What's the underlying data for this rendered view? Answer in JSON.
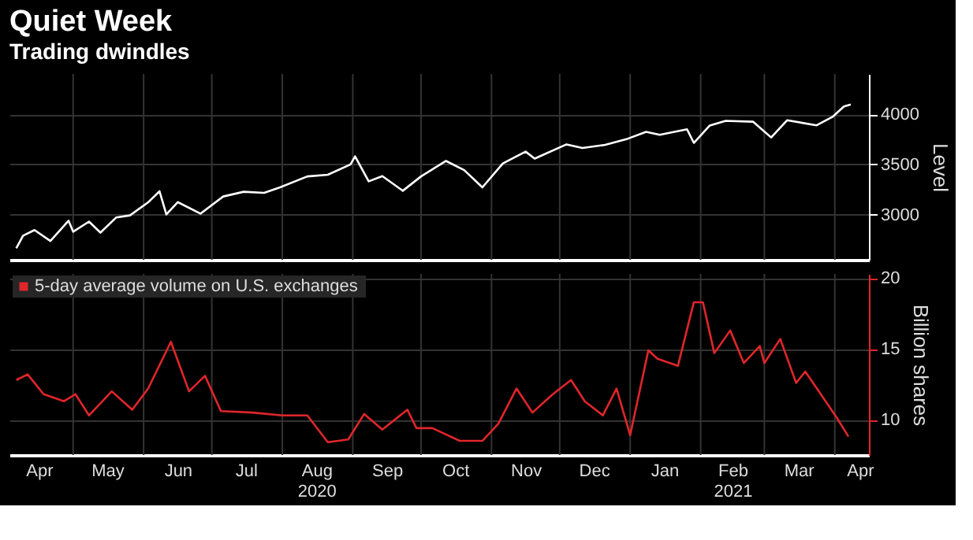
{
  "chart_data": [
    {
      "type": "line",
      "title": "Quiet Week",
      "subtitle": "Trading dwindles",
      "ylabel": "Level",
      "xlim": [
        "2020-04-03",
        "2021-04-16"
      ],
      "ylim": [
        2550,
        4400
      ],
      "yticks": [
        3000,
        3500,
        4000
      ],
      "grid": true,
      "tick_labels": "y",
      "legend": false,
      "x": [
        "2020-04-06",
        "2020-04-09",
        "2020-04-14",
        "2020-04-21",
        "2020-04-29",
        "2020-05-01",
        "2020-05-08",
        "2020-05-13",
        "2020-05-20",
        "2020-05-26",
        "2020-06-03",
        "2020-06-08",
        "2020-06-11",
        "2020-06-16",
        "2020-06-26",
        "2020-07-06",
        "2020-07-15",
        "2020-07-24",
        "2020-07-31",
        "2020-08-12",
        "2020-08-21",
        "2020-08-31",
        "2020-09-02",
        "2020-09-08",
        "2020-09-14",
        "2020-09-23",
        "2020-10-01",
        "2020-10-12",
        "2020-10-20",
        "2020-10-28",
        "2020-11-06",
        "2020-11-16",
        "2020-11-20",
        "2020-12-04",
        "2020-12-11",
        "2020-12-21",
        "2020-12-31",
        "2021-01-08",
        "2021-01-14",
        "2021-01-26",
        "2021-01-29",
        "2021-02-05",
        "2021-02-12",
        "2021-02-24",
        "2021-03-04",
        "2021-03-11",
        "2021-03-24",
        "2021-03-31",
        "2021-04-05",
        "2021-04-08"
      ],
      "xticks": [
        {
          "value": "2020-05-01",
          "label": null
        },
        {
          "value": "2020-06-01",
          "label": null
        },
        {
          "value": "2020-07-01",
          "label": null
        },
        {
          "value": "2020-08-01",
          "label": null
        },
        {
          "value": "2020-09-01",
          "label": null
        },
        {
          "value": "2020-10-01",
          "label": null
        },
        {
          "value": "2020-11-01",
          "label": null
        },
        {
          "value": "2020-12-01",
          "label": null
        },
        {
          "value": "2021-01-01",
          "label": null
        },
        {
          "value": "2021-02-01",
          "label": null
        },
        {
          "value": "2021-03-01",
          "label": null
        },
        {
          "value": "2021-04-01",
          "label": null
        }
      ],
      "series": [
        {
          "color": "#ffffff",
          "values": [
            2664,
            2790,
            2846,
            2737,
            2939,
            2830,
            2930,
            2820,
            2972,
            2992,
            3122,
            3232,
            3002,
            3124,
            3009,
            3180,
            3227,
            3216,
            3271,
            3380,
            3397,
            3500,
            3580,
            3331,
            3383,
            3237,
            3380,
            3534,
            3443,
            3271,
            3509,
            3627,
            3557,
            3699,
            3663,
            3694,
            3756,
            3824,
            3795,
            3849,
            3714,
            3887,
            3934,
            3925,
            3768,
            3939,
            3889,
            3973,
            4077,
            4097
          ]
        }
      ]
    },
    {
      "type": "line",
      "ylabel": "Billion shares",
      "xlim": [
        "2020-04-03",
        "2021-04-16"
      ],
      "ylim": [
        7.5,
        20.3
      ],
      "yticks": [
        10,
        15,
        20
      ],
      "grid": true,
      "legend": "top left",
      "x": [
        "2020-04-06",
        "2020-04-11",
        "2020-04-18",
        "2020-04-27",
        "2020-05-02",
        "2020-05-08",
        "2020-05-18",
        "2020-05-27",
        "2020-06-03",
        "2020-06-13",
        "2020-06-21",
        "2020-06-28",
        "2020-07-05",
        "2020-07-19",
        "2020-08-01",
        "2020-08-12",
        "2020-08-21",
        "2020-08-30",
        "2020-09-06",
        "2020-09-14",
        "2020-09-25",
        "2020-09-29",
        "2020-10-06",
        "2020-10-18",
        "2020-10-28",
        "2020-11-04",
        "2020-11-12",
        "2020-11-19",
        "2020-11-28",
        "2020-12-06",
        "2020-12-12",
        "2020-12-20",
        "2020-12-26",
        "2021-01-01",
        "2021-01-09",
        "2021-01-13",
        "2021-01-22",
        "2021-01-29",
        "2021-02-02",
        "2021-02-07",
        "2021-02-14",
        "2021-02-20",
        "2021-02-27",
        "2021-03-01",
        "2021-03-08",
        "2021-03-15",
        "2021-03-19",
        "2021-03-25",
        "2021-04-02",
        "2021-04-07"
      ],
      "xticks": [
        {
          "value": "2020-04-16",
          "label": "Apr"
        },
        {
          "value": "2020-05-01",
          "label": null
        },
        {
          "value": "2020-05-16",
          "label": "May"
        },
        {
          "value": "2020-06-01",
          "label": null
        },
        {
          "value": "2020-06-16",
          "label": "Jun"
        },
        {
          "value": "2020-07-01",
          "label": null
        },
        {
          "value": "2020-07-16",
          "label": "Jul"
        },
        {
          "value": "2020-08-01",
          "label": null
        },
        {
          "value": "2020-08-16",
          "label": "Aug\n2020"
        },
        {
          "value": "2020-09-01",
          "label": null
        },
        {
          "value": "2020-09-16",
          "label": "Sep"
        },
        {
          "value": "2020-10-01",
          "label": null
        },
        {
          "value": "2020-10-16",
          "label": "Oct"
        },
        {
          "value": "2020-11-01",
          "label": null
        },
        {
          "value": "2020-11-16",
          "label": "Nov"
        },
        {
          "value": "2020-12-01",
          "label": null
        },
        {
          "value": "2020-12-16",
          "label": "Dec"
        },
        {
          "value": "2021-01-01",
          "label": null
        },
        {
          "value": "2021-01-16",
          "label": "Jan"
        },
        {
          "value": "2021-02-01",
          "label": null
        },
        {
          "value": "2021-02-15",
          "label": "Feb\n2021"
        },
        {
          "value": "2021-03-01",
          "label": null
        },
        {
          "value": "2021-03-16",
          "label": "Mar"
        },
        {
          "value": "2021-04-01",
          "label": null
        },
        {
          "value": "2021-04-12",
          "label": "Apr"
        }
      ],
      "series": [
        {
          "name": "5-day average volume on U.S. exchanges",
          "color": "#e0262a",
          "values": [
            12.8,
            13.2,
            11.8,
            11.3,
            11.8,
            10.3,
            12.0,
            10.7,
            12.2,
            15.5,
            12.0,
            13.1,
            10.6,
            10.5,
            10.3,
            10.3,
            8.4,
            8.6,
            10.4,
            9.3,
            10.7,
            9.4,
            9.4,
            8.5,
            8.5,
            9.7,
            12.2,
            10.5,
            11.8,
            12.8,
            11.3,
            10.3,
            12.2,
            8.9,
            14.9,
            14.3,
            13.8,
            18.3,
            18.3,
            14.7,
            16.3,
            14.0,
            15.2,
            14.0,
            15.7,
            12.6,
            13.4,
            12.0,
            10.1,
            8.8
          ]
        }
      ]
    }
  ]
}
